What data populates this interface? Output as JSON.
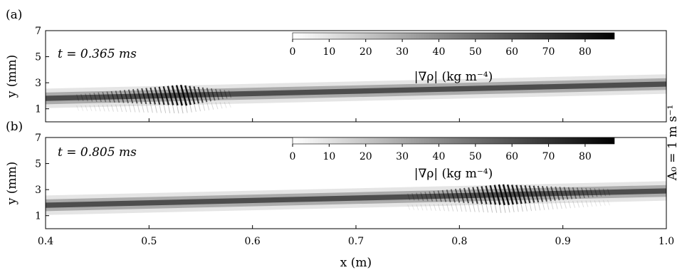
{
  "figure": {
    "side_label": "A₀ = 1 m s⁻¹",
    "x_axis": {
      "label": "x (m)",
      "ticks": [
        "0.4",
        "0.5",
        "0.6",
        "0.7",
        "0.8",
        "0.9",
        "1.0"
      ]
    }
  },
  "chart_data": [
    {
      "type": "heatmap",
      "panel_label": "(a)",
      "time_label": "t = 0.365 ms",
      "xlabel": "x (m)",
      "ylabel": "y (mm)",
      "xlim": [
        0.4,
        1.0
      ],
      "ylim": [
        0,
        7
      ],
      "yticks": [
        1,
        3,
        5,
        7
      ],
      "colorbar": {
        "label": "|∇ρ| (kg m⁻⁴)",
        "ticks": [
          0,
          10,
          20,
          30,
          40,
          50,
          60,
          70,
          80
        ],
        "range": [
          0,
          88
        ],
        "colormap": [
          "#ffffff",
          "#000000"
        ]
      },
      "interface_line": {
        "x": [
          0.4,
          1.0
        ],
        "y": [
          1.8,
          2.9
        ]
      },
      "wave_packet": {
        "x_start": 0.43,
        "x_end": 0.58,
        "peak_x": 0.53
      }
    },
    {
      "type": "heatmap",
      "panel_label": "(b)",
      "time_label": "t = 0.805 ms",
      "xlabel": "x (m)",
      "ylabel": "y (mm)",
      "xlim": [
        0.4,
        1.0
      ],
      "ylim": [
        0,
        7
      ],
      "yticks": [
        1,
        3,
        5,
        7
      ],
      "colorbar": {
        "label": "|∇ρ| (kg m⁻⁴)",
        "ticks": [
          0,
          10,
          20,
          30,
          40,
          50,
          60,
          70,
          80
        ],
        "range": [
          0,
          88
        ],
        "colormap": [
          "#ffffff",
          "#000000"
        ]
      },
      "interface_line": {
        "x": [
          0.4,
          1.0
        ],
        "y": [
          1.8,
          2.9
        ]
      },
      "wave_packet": {
        "x_start": 0.75,
        "x_end": 0.945,
        "peak_x": 0.84
      }
    }
  ]
}
